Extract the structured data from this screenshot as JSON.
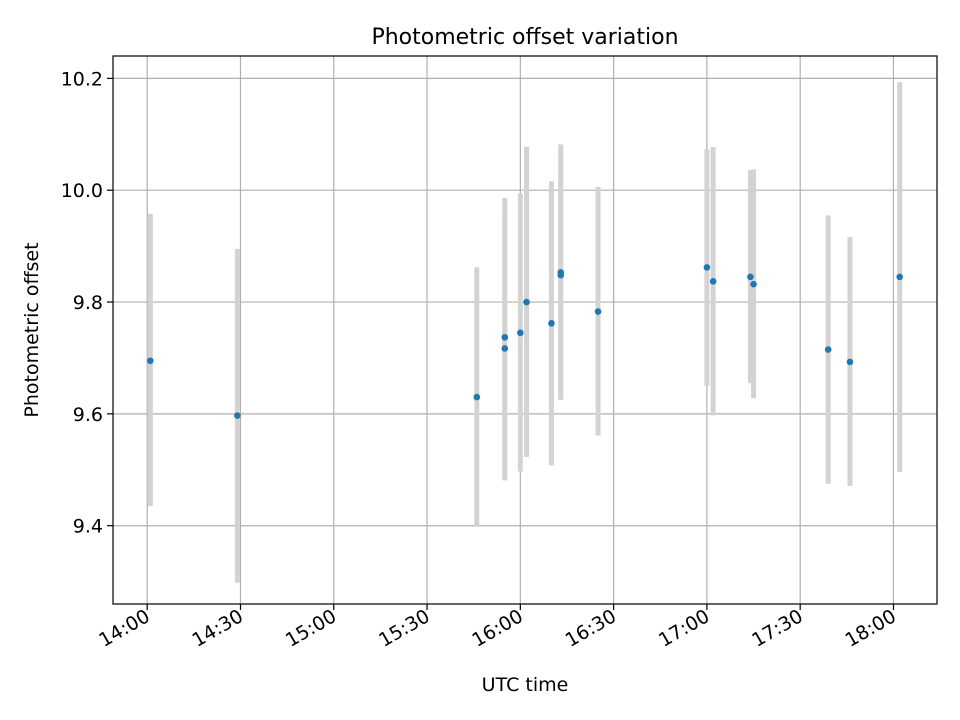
{
  "chart_data": {
    "type": "scatter",
    "title": "Photometric offset variation",
    "xlabel": "UTC time",
    "ylabel": "Photometric offset",
    "grid": true,
    "x_ticks": [
      "14:00",
      "14:30",
      "15:00",
      "15:30",
      "16:00",
      "16:30",
      "17:00",
      "17:30",
      "18:00"
    ],
    "y_ticks": [
      9.4,
      9.6,
      9.8,
      10.0,
      10.2
    ],
    "xlim": [
      "13:49",
      "18:14"
    ],
    "ylim": [
      9.26,
      10.24
    ],
    "point_color": "#1f77b4",
    "errorbar_color": "#d3d3d3",
    "points": [
      {
        "time": "14:01",
        "value": 9.695,
        "lower": 9.435,
        "upper": 9.958
      },
      {
        "time": "14:29",
        "value": 9.597,
        "lower": 9.298,
        "upper": 9.895
      },
      {
        "time": "15:46",
        "value": 9.63,
        "lower": 9.4,
        "upper": 9.862
      },
      {
        "time": "15:55",
        "value": 9.737,
        "lower": 9.488,
        "upper": 9.986
      },
      {
        "time": "15:55",
        "value": 9.717,
        "lower": 9.481,
        "upper": 9.955
      },
      {
        "time": "16:00",
        "value": 9.745,
        "lower": 9.497,
        "upper": 9.994
      },
      {
        "time": "16:02",
        "value": 9.8,
        "lower": 9.523,
        "upper": 10.078
      },
      {
        "time": "16:10",
        "value": 9.762,
        "lower": 9.508,
        "upper": 10.016
      },
      {
        "time": "16:13",
        "value": 9.853,
        "lower": 9.625,
        "upper": 10.082
      },
      {
        "time": "16:13",
        "value": 9.848,
        "lower": 9.628,
        "upper": 10.067
      },
      {
        "time": "16:25",
        "value": 9.783,
        "lower": 9.561,
        "upper": 10.006
      },
      {
        "time": "17:00",
        "value": 9.862,
        "lower": 9.65,
        "upper": 10.073
      },
      {
        "time": "17:02",
        "value": 9.837,
        "lower": 9.597,
        "upper": 10.077
      },
      {
        "time": "17:14",
        "value": 9.845,
        "lower": 9.655,
        "upper": 10.036
      },
      {
        "time": "17:15",
        "value": 9.832,
        "lower": 9.628,
        "upper": 10.037
      },
      {
        "time": "17:39",
        "value": 9.715,
        "lower": 9.475,
        "upper": 9.955
      },
      {
        "time": "17:46",
        "value": 9.693,
        "lower": 9.471,
        "upper": 9.916
      },
      {
        "time": "18:02",
        "value": 9.845,
        "lower": 9.496,
        "upper": 10.193
      }
    ]
  }
}
